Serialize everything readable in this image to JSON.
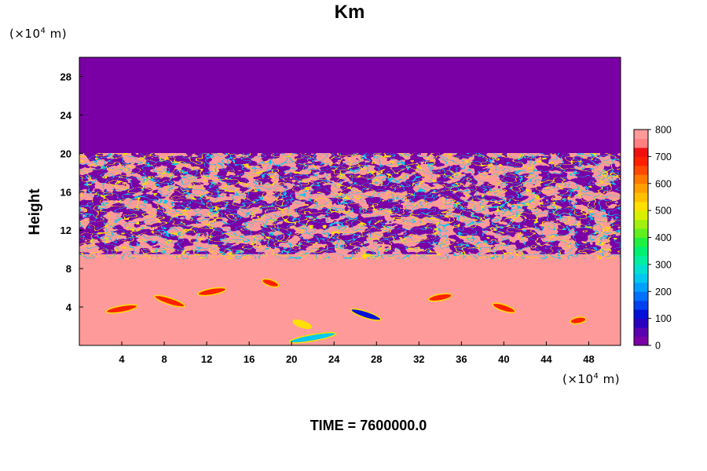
{
  "chart_data": {
    "type": "heatmap",
    "title": "Km",
    "ylabel": "Height",
    "x_units": "(×10⁴ m)",
    "y_units": "(×10⁴ m)",
    "xlim": [
      0,
      51
    ],
    "ylim": [
      0,
      30
    ],
    "x_ticks": [
      4,
      8,
      12,
      16,
      20,
      24,
      28,
      32,
      36,
      40,
      44,
      48
    ],
    "y_ticks": [
      4,
      8,
      12,
      16,
      20,
      24,
      28
    ],
    "colorbar": {
      "range": [
        0,
        800
      ],
      "ticks": [
        0,
        100,
        200,
        300,
        400,
        500,
        600,
        700,
        800
      ],
      "colors": [
        "#7a00a6",
        "#5a00b0",
        "#2a00c0",
        "#0010d8",
        "#0040f0",
        "#0070ff",
        "#00a0ff",
        "#00c8f0",
        "#00e0d0",
        "#00f0a0",
        "#00f070",
        "#20f040",
        "#60f020",
        "#a0f010",
        "#d8f000",
        "#ffe000",
        "#ffc000",
        "#ffa000",
        "#ff7800",
        "#ff4800",
        "#ff2000",
        "#f01010",
        "#ff8080",
        "#ff9a9a"
      ]
    },
    "regions": [
      {
        "name": "lower layer",
        "y_range": [
          0,
          9.5
        ],
        "value_approx": 800
      },
      {
        "name": "turbulent layer",
        "y_range": [
          9.5,
          19.5
        ],
        "value_range": [
          0,
          800
        ]
      },
      {
        "name": "upper layer",
        "y_range": [
          19.5,
          30
        ],
        "value_approx": 0
      }
    ]
  },
  "time_label": "TIME = 7600000.0"
}
